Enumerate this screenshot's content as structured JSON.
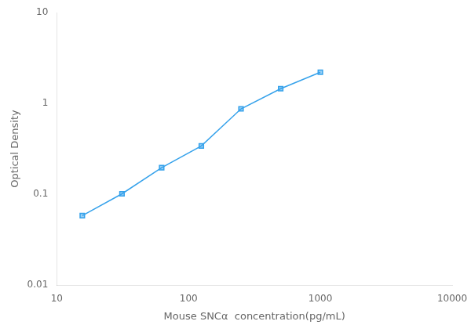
{
  "chart_data": {
    "type": "line",
    "x": [
      15.625,
      31.25,
      62.5,
      125,
      250,
      500,
      1000
    ],
    "values": [
      0.058,
      0.101,
      0.196,
      0.34,
      0.87,
      1.45,
      2.2
    ],
    "xlabel": "Mouse SNCα  concentration(pg/mL)",
    "ylabel": "Optical Density",
    "xlim": [
      10,
      10000
    ],
    "ylim": [
      0.01,
      10
    ],
    "xticks": [
      10,
      100,
      1000,
      10000
    ],
    "yticks": [
      0.01,
      0.1,
      1,
      10
    ],
    "log": true,
    "grid": false,
    "marker": "square"
  }
}
